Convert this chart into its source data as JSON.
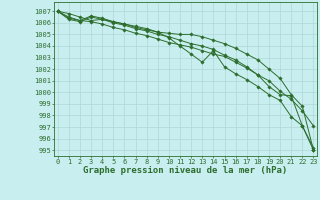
{
  "background_color": "#c8eef0",
  "grid_color": "#b0d8d8",
  "line_color": "#2d6e2d",
  "xlabel": "Graphe pression niveau de la mer (hPa)",
  "xlabel_fontsize": 6.5,
  "tick_fontsize": 5.0,
  "ylim": [
    994.5,
    1007.8
  ],
  "xlim": [
    -0.3,
    23.3
  ],
  "yticks": [
    995,
    996,
    997,
    998,
    999,
    1000,
    1001,
    1002,
    1003,
    1004,
    1005,
    1006,
    1007
  ],
  "xticks": [
    0,
    1,
    2,
    3,
    4,
    5,
    6,
    7,
    8,
    9,
    10,
    11,
    12,
    13,
    14,
    15,
    16,
    17,
    18,
    19,
    20,
    21,
    22,
    23
  ],
  "series": [
    [
      1007.0,
      1006.8,
      1006.5,
      1006.2,
      1006.3,
      1006.1,
      1005.9,
      1005.6,
      1005.4,
      1005.2,
      1005.1,
      1005.0,
      1005.0,
      1004.8,
      1004.5,
      1004.2,
      1003.8,
      1003.3,
      1002.8,
      1002.0,
      1001.2,
      999.8,
      998.8,
      995.0
    ],
    [
      1007.0,
      1006.5,
      1006.2,
      1006.6,
      1006.4,
      1006.1,
      1005.9,
      1005.7,
      1005.5,
      1005.2,
      1004.7,
      1004.0,
      1003.3,
      1002.6,
      1003.6,
      1002.2,
      1001.6,
      1001.1,
      1000.5,
      999.8,
      999.3,
      997.9,
      997.1,
      995.0
    ],
    [
      1007.0,
      1006.4,
      1006.2,
      1006.1,
      1005.9,
      1005.6,
      1005.4,
      1005.1,
      1004.9,
      1004.6,
      1004.3,
      1004.1,
      1003.9,
      1003.6,
      1003.3,
      1003.1,
      1002.6,
      1002.1,
      1001.5,
      1001.0,
      1000.1,
      999.4,
      998.4,
      997.1
    ],
    [
      1007.0,
      1006.3,
      1006.1,
      1006.5,
      1006.3,
      1006.0,
      1005.8,
      1005.5,
      1005.3,
      1005.0,
      1004.8,
      1004.5,
      1004.2,
      1004.0,
      1003.7,
      1003.2,
      1002.8,
      1002.2,
      1001.5,
      1000.5,
      999.8,
      999.7,
      997.1,
      995.2
    ]
  ]
}
